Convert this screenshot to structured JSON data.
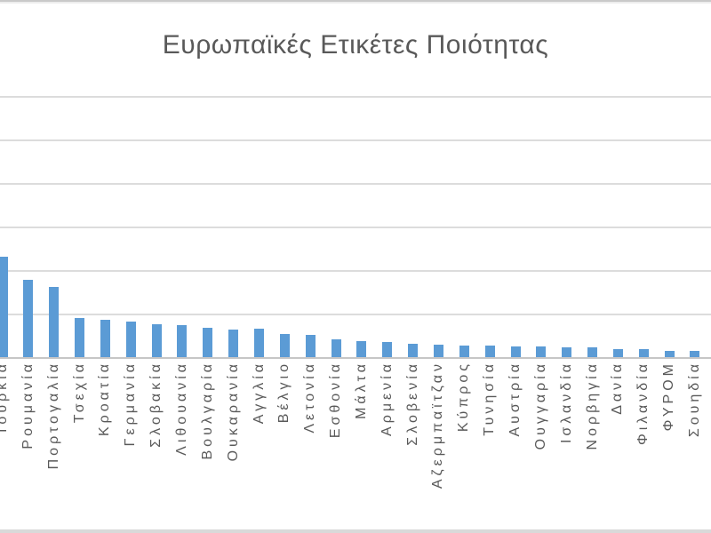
{
  "window": {
    "background": "#ffffff"
  },
  "chart_data": {
    "type": "bar",
    "title": "Ευρωπαϊκές Ετικέτες Ποιότητας",
    "xlabel": "",
    "ylabel": "",
    "categories": [
      "Τουρκία",
      "Ρουμανία",
      "Πορτογαλία",
      "Τσεχία",
      "Κροατία",
      "Γερμανία",
      "Σλοβακία",
      "Λιθουανία",
      "Βουλγαρία",
      "Ουκαρανία",
      "Αγγλία",
      "Βέλγιο",
      "Λετονία",
      "Εσθονία",
      "Μάλτα",
      "Αρμενία",
      "Σλοβενία",
      "Αζερμπαϊτζαν",
      "Κύπρος",
      "Τυνησία",
      "Αυστρία",
      "Ουγγαρία",
      "Ισλανδία",
      "Νορβηγία",
      "Δανία",
      "Φιλανδία",
      "ΦΥΡΟΜ",
      "Σουηδία"
    ],
    "values": [
      115,
      89,
      81,
      45,
      43,
      41,
      38,
      37,
      34,
      32,
      33,
      27,
      26,
      20,
      18,
      17,
      15,
      14,
      13,
      13,
      12,
      12,
      11,
      11,
      9,
      9,
      7,
      7
    ],
    "ylim": [
      0,
      300
    ],
    "gridline_step": 50,
    "grid": true,
    "legend": "none",
    "y_axis_labels_visible": false,
    "first_category_clipped_left": true,
    "colors": {
      "bar": "#5b9bd5",
      "gridline": "#dcdcdc",
      "axis_line": "#c6c6c6",
      "title": "#595959",
      "tick_label": "#595959",
      "frame_edge": "#c9c9c9"
    }
  }
}
